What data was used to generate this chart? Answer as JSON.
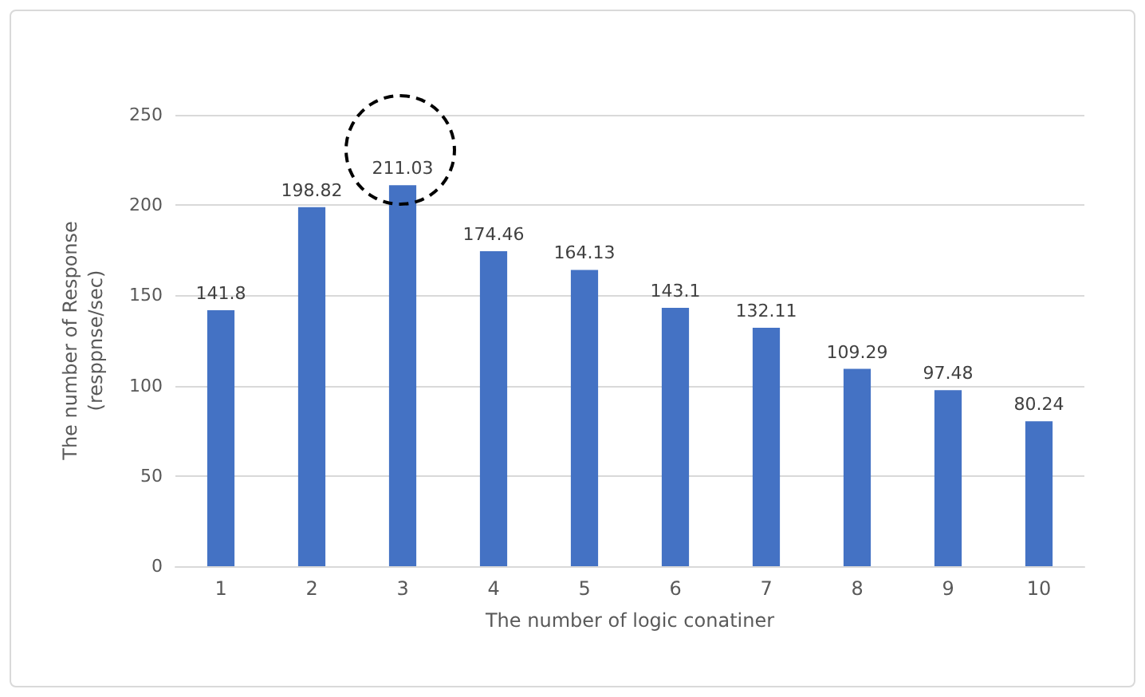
{
  "chart_data": {
    "type": "bar",
    "xlabel": "The number of logic conatiner",
    "ylabel": "The number of Response\n(resppnse/sec)",
    "categories": [
      "1",
      "2",
      "3",
      "4",
      "5",
      "6",
      "7",
      "8",
      "9",
      "10"
    ],
    "values": [
      141.8,
      198.82,
      211.03,
      174.46,
      164.13,
      143.1,
      132.11,
      109.29,
      97.48,
      80.24
    ],
    "color": "#4472c4",
    "ylim": [
      0,
      250
    ],
    "yticks": [
      0,
      50,
      100,
      150,
      200,
      250
    ],
    "grid": "y",
    "data_labels": true
  }
}
